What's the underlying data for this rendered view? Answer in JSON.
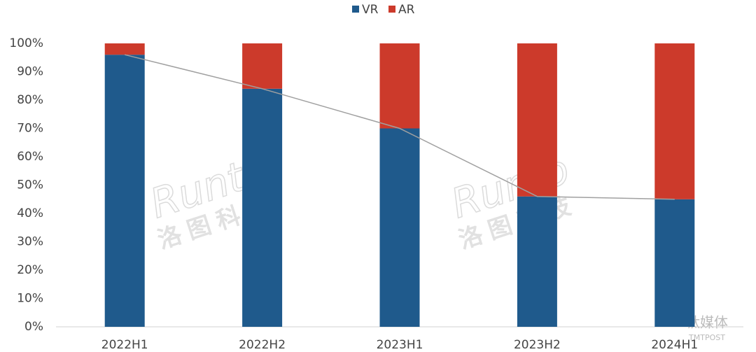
{
  "chart_data": {
    "type": "stacked_bar",
    "categories": [
      "2022H1",
      "2022H2",
      "2023H1",
      "2023H2",
      "2024H1"
    ],
    "series": [
      {
        "name": "VR",
        "color": "#1f5a8c",
        "values": [
          96,
          84,
          70,
          46,
          45
        ]
      },
      {
        "name": "AR",
        "color": "#cc3a2b",
        "values": [
          4,
          16,
          30,
          54,
          55
        ]
      }
    ],
    "ylim": [
      0,
      100
    ],
    "yticks": [
      {
        "value": 0,
        "label": "0%"
      },
      {
        "value": 10,
        "label": "10%"
      },
      {
        "value": 20,
        "label": "20%"
      },
      {
        "value": 30,
        "label": "30%"
      },
      {
        "value": 40,
        "label": "40%"
      },
      {
        "value": 50,
        "label": "50%"
      },
      {
        "value": 60,
        "label": "60%"
      },
      {
        "value": 70,
        "label": "70%"
      },
      {
        "value": 80,
        "label": "80%"
      },
      {
        "value": 90,
        "label": "90%"
      },
      {
        "value": 100,
        "label": "100%"
      }
    ],
    "connector_line": true,
    "legend": "top",
    "watermarks": [
      "Runto",
      "洛图科技",
      "钛媒体",
      "TMTPOST"
    ]
  }
}
